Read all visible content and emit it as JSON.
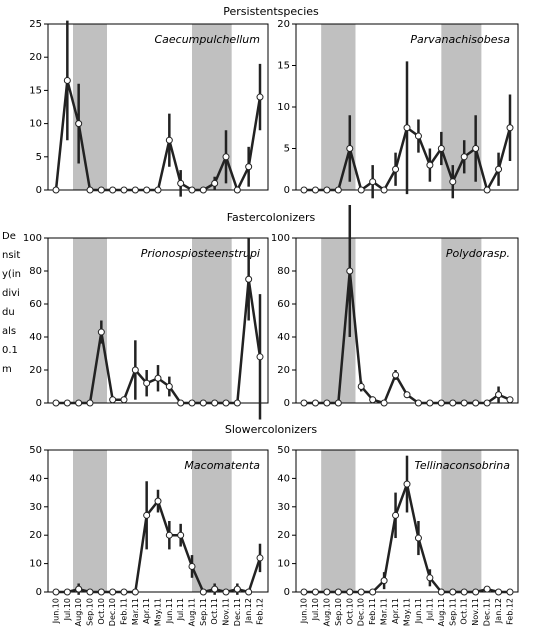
{
  "section_titles": [
    "Persistentspecies",
    "Fastercolonizers",
    "Slowercolonizers"
  ],
  "y_label_lines": [
    "De",
    "nsit",
    "y(in",
    "divi",
    "du",
    "als",
    "0.1",
    "m"
  ],
  "categories": [
    "Jun.10",
    "Jul.10",
    "Aug.10",
    "Sep.10",
    "Oct.10",
    "Dec.10",
    "Feb.11",
    "Mar.11",
    "Apr.11",
    "May.11",
    "Jun.11",
    "Jul.11",
    "Aug.11",
    "Sep.11",
    "Oct.11",
    "Nov.11",
    "Dec.11",
    "Jan.12",
    "Feb.12"
  ],
  "chart_data": [
    {
      "type": "line",
      "title": "Caecumpulchellum",
      "ylim": [
        0,
        25
      ],
      "yticks": [
        0,
        5,
        10,
        15,
        20,
        25
      ],
      "shaded": [
        [
          1.5,
          4.5
        ],
        [
          12,
          15.5
        ]
      ],
      "values": [
        0,
        16.5,
        10,
        0,
        0,
        0,
        0,
        0,
        0,
        0,
        7.5,
        1,
        0,
        0,
        1,
        5,
        0,
        3.5,
        14
      ],
      "errors": [
        0,
        9,
        6,
        0,
        0,
        0,
        0,
        0,
        0,
        0,
        4,
        2,
        0,
        0,
        1,
        4,
        0,
        3,
        5
      ]
    },
    {
      "type": "line",
      "title": "Parvanachisobesa",
      "ylim": [
        0,
        20
      ],
      "yticks": [
        0,
        5,
        10,
        15,
        20
      ],
      "shaded": [
        [
          1.5,
          4.5
        ],
        [
          12,
          15.5
        ]
      ],
      "values": [
        0,
        0,
        0,
        0,
        5,
        0,
        1,
        0,
        2.5,
        7.5,
        6.5,
        3,
        5,
        1,
        4,
        5,
        0,
        2.5,
        7.5
      ],
      "errors": [
        0,
        0,
        0,
        0,
        4,
        0,
        2,
        0,
        2,
        8,
        2,
        2,
        2,
        2,
        2,
        4,
        0,
        2,
        4
      ]
    },
    {
      "type": "line",
      "title": "Prionospiosteenstrupi",
      "ylim": [
        0,
        100
      ],
      "yticks": [
        0,
        20,
        40,
        60,
        80,
        100
      ],
      "shaded": [
        [
          1.5,
          4.5
        ],
        [
          12,
          15.5
        ]
      ],
      "values": [
        0,
        0,
        0,
        0,
        43,
        2,
        2,
        20,
        12,
        15,
        10,
        0,
        0,
        0,
        0,
        0,
        0,
        75,
        28
      ],
      "errors": [
        0,
        0,
        0,
        0,
        7,
        2,
        2,
        18,
        8,
        8,
        6,
        0,
        0,
        0,
        0,
        0,
        0,
        25,
        38
      ]
    },
    {
      "type": "line",
      "title": "Polydorasp.",
      "ylim": [
        0,
        100
      ],
      "yticks": [
        0,
        20,
        40,
        60,
        80,
        100
      ],
      "shaded": [
        [
          1.5,
          4.5
        ],
        [
          12,
          15.5
        ]
      ],
      "values": [
        0,
        0,
        0,
        0,
        80,
        10,
        2,
        0,
        17,
        5,
        0,
        0,
        0,
        0,
        0,
        0,
        0,
        5,
        2
      ],
      "errors": [
        0,
        0,
        0,
        0,
        40,
        3,
        2,
        0,
        3,
        2,
        0,
        0,
        0,
        0,
        0,
        0,
        0,
        5,
        0
      ]
    },
    {
      "type": "line",
      "title": "Macomatenta",
      "ylim": [
        0,
        50
      ],
      "yticks": [
        0,
        10,
        20,
        30,
        40,
        50
      ],
      "shaded": [
        [
          1.5,
          4.5
        ],
        [
          12,
          15.5
        ]
      ],
      "values": [
        0,
        0,
        1,
        0,
        0,
        0,
        0,
        0,
        27,
        32,
        20,
        20,
        9,
        0,
        1,
        0,
        1,
        0,
        12
      ],
      "errors": [
        0,
        0,
        2,
        0,
        0,
        0,
        0,
        0,
        12,
        4,
        5,
        4,
        4,
        0,
        2,
        0,
        2,
        0,
        5
      ]
    },
    {
      "type": "line",
      "title": "Tellinaconsobrina",
      "ylim": [
        0,
        50
      ],
      "yticks": [
        0,
        10,
        20,
        30,
        40,
        50
      ],
      "shaded": [
        [
          1.5,
          4.5
        ],
        [
          12,
          15.5
        ]
      ],
      "values": [
        0,
        0,
        0,
        0,
        0,
        0,
        0,
        4,
        27,
        38,
        19,
        5,
        0,
        0,
        0,
        0,
        1,
        0,
        0
      ],
      "errors": [
        0,
        0,
        0,
        0,
        0,
        0,
        0,
        3,
        8,
        10,
        6,
        3,
        0,
        0,
        0,
        0,
        1,
        0,
        0
      ]
    }
  ]
}
